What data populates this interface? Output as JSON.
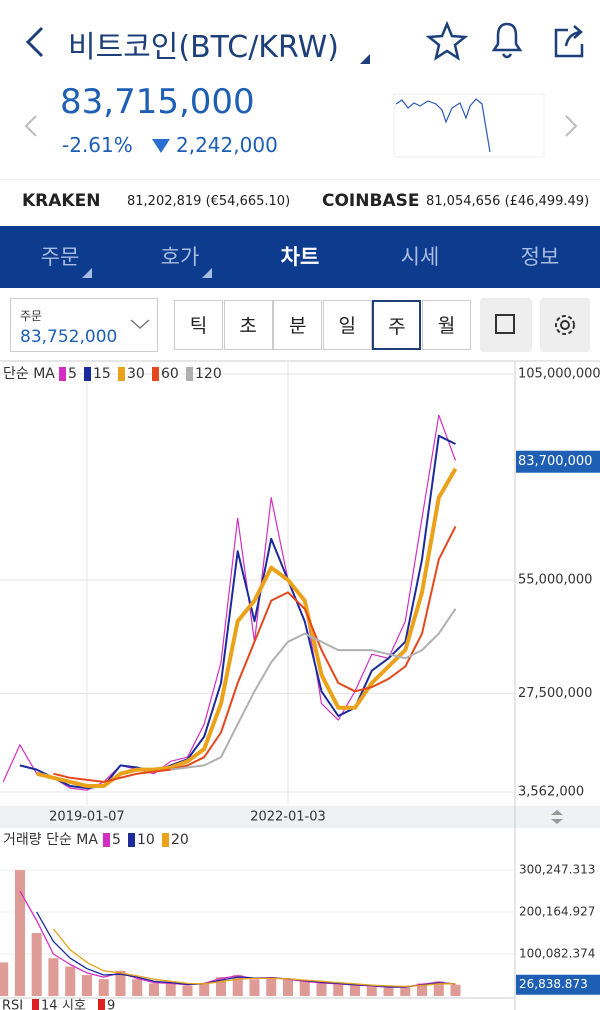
{
  "header": {
    "title": "비트코인(BTC/KRW)",
    "price": "83,715,000",
    "change_rate": "-2.61%",
    "change_amount": "2,242,000"
  },
  "exchanges": [
    {
      "name": "KRAKEN",
      "quote": "81,202,819 (€54,665.10)"
    },
    {
      "name": "COINBASE",
      "quote": "81,054,656 (£46,499.49)"
    }
  ],
  "tabs": [
    "주문",
    "호가",
    "차트",
    "시세",
    "정보"
  ],
  "active_tab": 2,
  "order_box": {
    "label": "주문",
    "value": "83,752,000"
  },
  "periods": [
    "틱",
    "초",
    "분",
    "일",
    "주",
    "월"
  ],
  "active_period": 4,
  "price_chart": {
    "type": "line",
    "legend_title": "단순 MA",
    "series": [
      {
        "name": "5",
        "color": "#d42fc1",
        "width": 1.2,
        "values": [
          6000000,
          15000000,
          8000000,
          7000000,
          4500000,
          4000000,
          6000000,
          10000000,
          9000000,
          8000000,
          11000000,
          12000000,
          20000000,
          35000000,
          70000000,
          40000000,
          75000000,
          55000000,
          50000000,
          25000000,
          21000000,
          28000000,
          37000000,
          36000000,
          45000000,
          70000000,
          95000000,
          84000000
        ]
      },
      {
        "name": "15",
        "color": "#1b2a9c",
        "width": 2,
        "values": [
          null,
          10000000,
          9000000,
          7000000,
          5000000,
          4500000,
          5000000,
          10000000,
          9500000,
          8500000,
          10000000,
          11500000,
          17000000,
          30000000,
          62000000,
          45000000,
          65000000,
          55000000,
          45000000,
          28000000,
          22000000,
          24000000,
          33000000,
          36000000,
          40000000,
          60000000,
          90000000,
          88000000
        ]
      },
      {
        "name": "30",
        "color": "#e9a21a",
        "width": 4,
        "values": [
          null,
          null,
          8000000,
          7000000,
          6000000,
          5000000,
          5000000,
          8000000,
          9000000,
          9000000,
          9500000,
          11000000,
          14000000,
          25000000,
          45000000,
          50000000,
          58000000,
          55000000,
          50000000,
          32000000,
          24000000,
          24000000,
          30000000,
          34000000,
          38000000,
          52000000,
          75000000,
          82000000
        ]
      },
      {
        "name": "60",
        "color": "#e5481d",
        "width": 2,
        "values": [
          null,
          null,
          null,
          8000000,
          7000000,
          6500000,
          6000000,
          7000000,
          8000000,
          8500000,
          9000000,
          10000000,
          12000000,
          18000000,
          30000000,
          40000000,
          50000000,
          52000000,
          48000000,
          38000000,
          30000000,
          28000000,
          29000000,
          31000000,
          34000000,
          42000000,
          60000000,
          68000000
        ]
      },
      {
        "name": "120",
        "color": "#b0b0b0",
        "width": 2,
        "values": [
          null,
          null,
          null,
          null,
          null,
          null,
          null,
          null,
          null,
          null,
          9000000,
          9500000,
          10000000,
          12000000,
          20000000,
          28000000,
          35000000,
          40000000,
          42000000,
          40000000,
          38000000,
          38000000,
          38000000,
          37000000,
          36000000,
          38000000,
          42000000,
          48000000
        ]
      }
    ],
    "xlim": [
      -0.19,
      30.55
    ],
    "xticks": [
      {
        "value": 5,
        "label": "2019-01-07"
      },
      {
        "value": 17,
        "label": "2022-01-03"
      }
    ],
    "ylim": [
      400000,
      107900000
    ],
    "yticks": [
      {
        "value": 105000000,
        "label": "105,000,000"
      },
      {
        "value": 55000000,
        "label": "55,000,000"
      },
      {
        "value": 27500000,
        "label": "27,500,000"
      },
      {
        "value": 3562000,
        "label": "3,562,000"
      }
    ],
    "current": {
      "value": 83700000,
      "label": "83,700,000"
    }
  },
  "volume_chart": {
    "type": "bar",
    "legend_title": "거래량 단순 MA",
    "color": "#d98a84",
    "values": [
      80000,
      300000,
      150000,
      90000,
      70000,
      50000,
      40000,
      60000,
      40000,
      30000,
      30000,
      25000,
      30000,
      45000,
      50000,
      40000,
      45000,
      40000,
      35000,
      30000,
      30000,
      25000,
      25000,
      20000,
      20000,
      30000,
      35000,
      27000
    ],
    "series": [
      {
        "name": "5",
        "color": "#d42fc1",
        "values": [
          null,
          250000,
          180000,
          100000,
          75000,
          55000,
          45000,
          55000,
          42000,
          32000,
          30000,
          27000,
          30000,
          42000,
          48000,
          42000,
          44000,
          40000,
          35000,
          31000,
          29000,
          26000,
          24000,
          21000,
          21000,
          28000,
          33000,
          28000
        ]
      },
      {
        "name": "10",
        "color": "#1b2a9c",
        "values": [
          null,
          null,
          200000,
          130000,
          90000,
          65000,
          50000,
          52000,
          45000,
          35000,
          32000,
          28000,
          29000,
          38000,
          45000,
          43000,
          43000,
          41000,
          37000,
          33000,
          30000,
          27000,
          25000,
          22000,
          22000,
          26000,
          31000,
          29000
        ]
      },
      {
        "name": "20",
        "color": "#e7a31c",
        "values": [
          null,
          null,
          null,
          160000,
          110000,
          80000,
          60000,
          55000,
          48000,
          40000,
          35000,
          30000,
          29000,
          34000,
          40000,
          42000,
          42000,
          41000,
          38000,
          35000,
          32000,
          29000,
          26000,
          24000,
          23000,
          25000,
          29000,
          29000
        ]
      }
    ],
    "ylim": [
      -9500,
      400300
    ],
    "yticks": [
      {
        "value": 300247.313,
        "label": "300,247.313"
      },
      {
        "value": 200164.927,
        "label": "200,164.927"
      },
      {
        "value": 100082.374,
        "label": "100,082.374"
      }
    ],
    "current": {
      "value": 26838.873,
      "label": "26,838.873"
    }
  },
  "rsi": {
    "label": "RSI",
    "params": [
      "14",
      "시호",
      "9"
    ]
  }
}
